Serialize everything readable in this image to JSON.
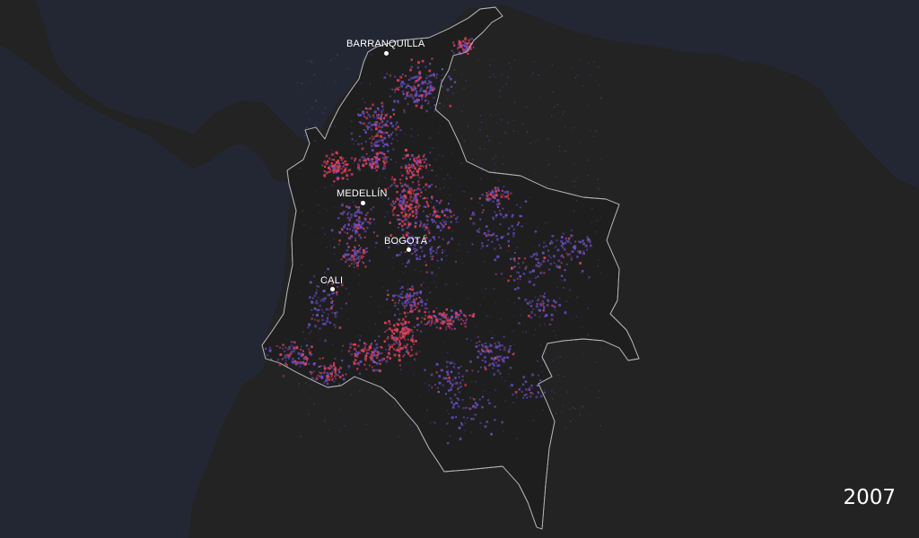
{
  "map": {
    "cities": [
      {
        "id": "barranquilla",
        "name": "BARRANQUILLA"
      },
      {
        "id": "medellin",
        "name": "MEDELLÍN"
      },
      {
        "id": "bogota",
        "name": "BOGOTÁ"
      },
      {
        "id": "cali",
        "name": "CALI"
      }
    ],
    "year": "2007",
    "colors": {
      "ocean": "#232733",
      "land": "#232323",
      "border": "#a9a9ad",
      "dot_low": "#6a4fc8",
      "dot_high": "#e8435a"
    }
  }
}
